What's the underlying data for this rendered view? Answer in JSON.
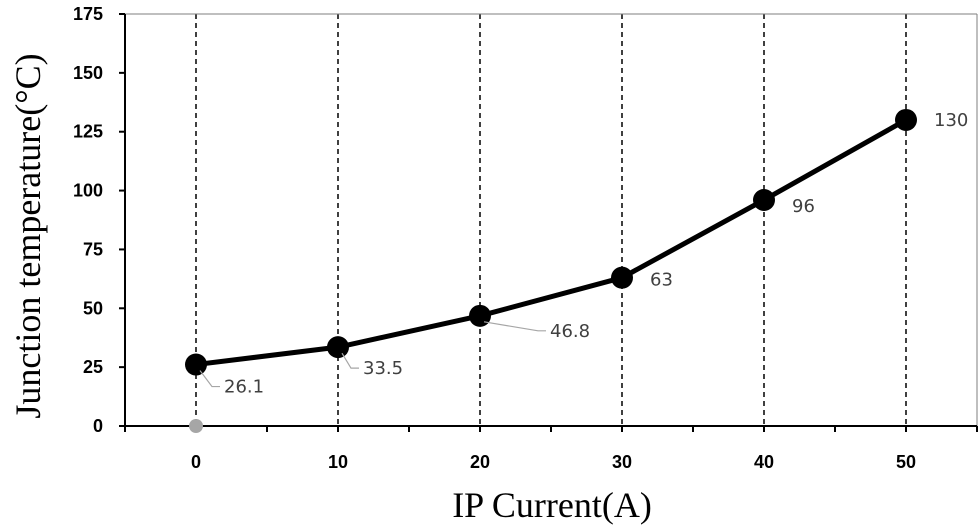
{
  "chart_data": {
    "type": "line",
    "title": "",
    "xlabel": "IP Current(A)",
    "ylabel": "Junction temperature(°C)",
    "x": [
      0,
      10,
      20,
      30,
      40,
      50
    ],
    "xlim": [
      -5,
      55
    ],
    "ylim": [
      0,
      175
    ],
    "xticks": [
      0,
      10,
      20,
      30,
      40,
      50
    ],
    "yticks": [
      0,
      25,
      50,
      75,
      100,
      125,
      150,
      175
    ],
    "series": [
      {
        "values": [
          26.1,
          33.5,
          46.8,
          63,
          96,
          130
        ],
        "data_labels": [
          "26.1",
          "33.5",
          "46.8",
          "63",
          "96",
          "130"
        ],
        "color": "#000000"
      }
    ],
    "extra_point": {
      "x": 0,
      "y": 0,
      "color": "#a6a6a6"
    },
    "vertical_dashed_gridlines": true,
    "legend": "none"
  }
}
